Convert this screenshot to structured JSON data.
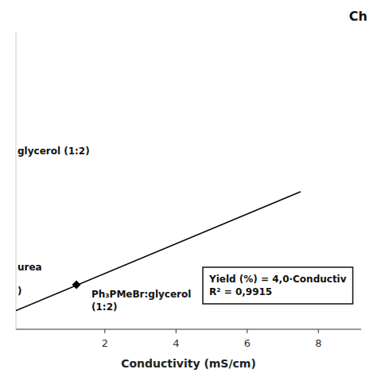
{
  "chart_data": {
    "type": "scatter",
    "title": "Ch",
    "x_label": "Conductivity (mS/cm)",
    "xlim": [
      -0.5,
      9.2
    ],
    "xticks": [
      2,
      4,
      6,
      8
    ],
    "ylim": [
      5,
      85
    ],
    "tick_labels": "x",
    "series": [
      {
        "type": "line",
        "x": [
          -0.5,
          7.5
        ],
        "values": [
          10,
          42
        ],
        "color": "#000000"
      },
      {
        "type": "scatter",
        "x": [
          1.2
        ],
        "values": [
          17
        ],
        "color": "#000000",
        "marker": "diamond"
      }
    ],
    "annotations": [
      [
        "glycerol (1:2)"
      ],
      [
        "Ph₃PMeBr:glycerol",
        "(1:2)"
      ],
      [
        "urea"
      ],
      [
        ")"
      ],
      [
        "Yield (%) = 4,0·Conductiv",
        "R² = 0,9915"
      ]
    ]
  }
}
